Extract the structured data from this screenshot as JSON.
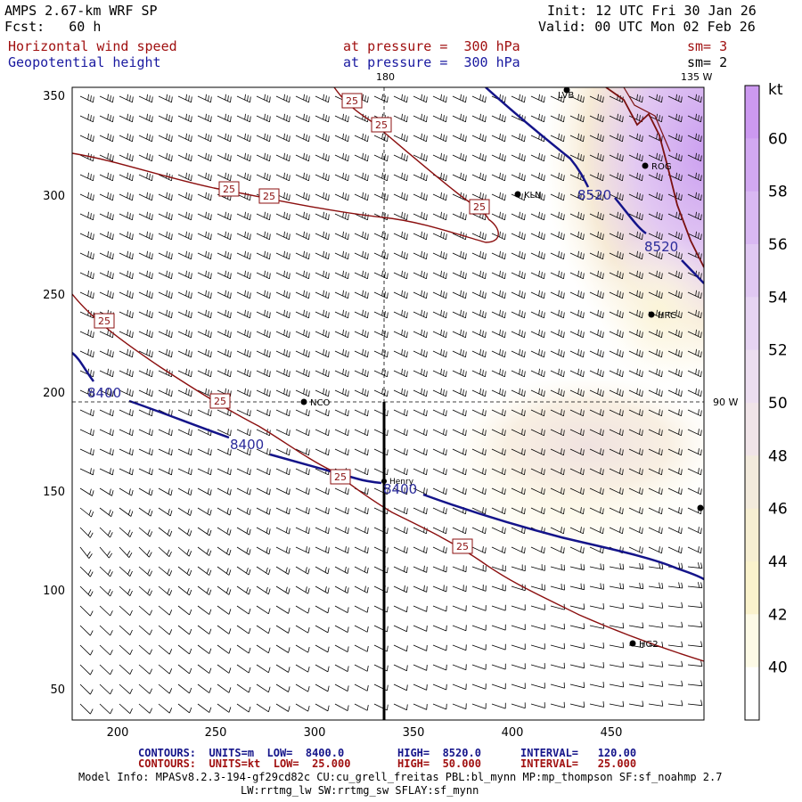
{
  "header": {
    "model": "AMPS 2.67-km WRF SP",
    "fcst": "Fcst:   60 h",
    "init": "Init: 12 UTC Fri 30 Jan 26",
    "valid": "Valid: 00 UTC Mon 02 Feb 26",
    "field1_name": "Horizontal wind speed",
    "field1_level": "at pressure =  300 hPa",
    "field1_sm": "sm= 3",
    "field2_name": "Geopotential height",
    "field2_level": "at pressure =  300 hPa",
    "field2_sm": "sm= 2"
  },
  "map": {
    "meridian_top": "180",
    "meridian_right_top": "135 W",
    "meridian_right": "90 W",
    "stations": [
      "LVB",
      "ROG",
      "KLN",
      "HRC",
      "NCO",
      "Henry",
      "HG2"
    ]
  },
  "axes": {
    "x_ticks": [
      "200",
      "250",
      "300",
      "350",
      "400",
      "450"
    ],
    "y_ticks": [
      "350",
      "300",
      "250",
      "200",
      "150",
      "100",
      "50"
    ]
  },
  "contour_labels": {
    "wind": [
      "25",
      "25",
      "25",
      "25",
      "25",
      "25",
      "25",
      "25",
      "25"
    ],
    "height": [
      "8520",
      "8520",
      "8400",
      "8400",
      "8400"
    ]
  },
  "colorbar": {
    "unit": "kt",
    "labels": [
      "60",
      "58",
      "56",
      "54",
      "52",
      "50",
      "48",
      "46",
      "44",
      "42",
      "40"
    ],
    "colors": [
      "#cc99f0",
      "#d2a8f1",
      "#d9b8f2",
      "#e0c8f2",
      "#e6d4f2",
      "#ecdef0",
      "#f0e4e8",
      "#f2eadc",
      "#f6eed2",
      "#faf2cc",
      "#fdfae6",
      "#ffffff"
    ]
  },
  "footer": {
    "row1_label": "CONTOURS:  UNITS=m  LOW=  8400.0",
    "row1_high": "HIGH=  8520.0",
    "row1_int": "INTERVAL=   120.00",
    "row2_label": "CONTOURS:  UNITS=kt  LOW=  25.000",
    "row2_high": "HIGH=  50.000",
    "row2_int": "INTERVAL=   25.000",
    "model_info": "Model Info: MPASv8.2.3-194-gf29cd82c CU:cu_grell_freitas PBL:bl_mynn MP:mp_thompson SF:sf_noahmp 2.7",
    "model_info2": "LW:rrtmg_lw SW:rrtmg_sw SFLAY:sf_mynn"
  }
}
